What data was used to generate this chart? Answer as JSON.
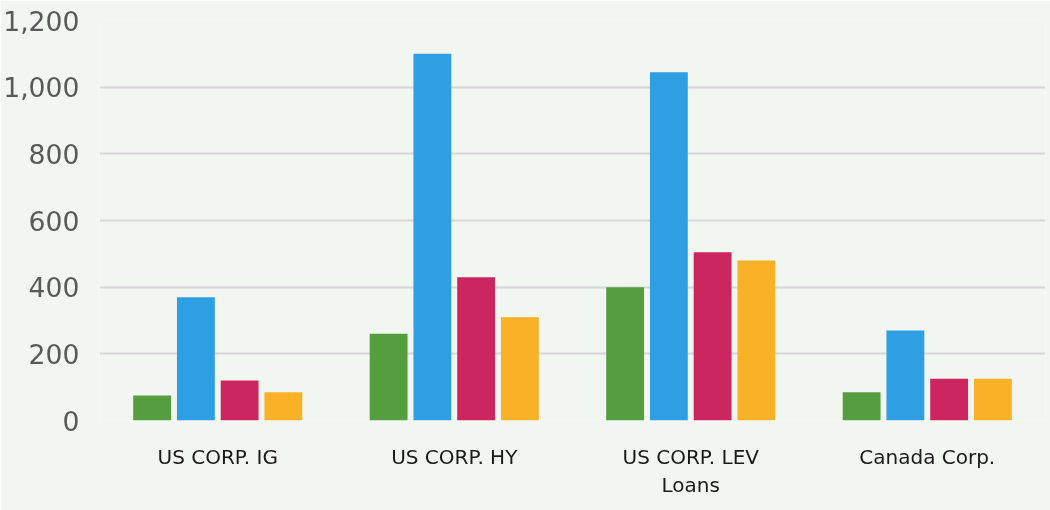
{
  "chart_data": {
    "type": "bar",
    "categories": [
      "US CORP. IG",
      "US CORP. HY",
      "US CORP. LEV Loans",
      "Canada Corp."
    ],
    "series": [
      {
        "color": "#549e3f",
        "values": [
          75,
          260,
          400,
          85
        ]
      },
      {
        "color": "#2f9fe4",
        "values": [
          370,
          1100,
          1045,
          270
        ]
      },
      {
        "color": "#cb2660",
        "values": [
          120,
          430,
          505,
          125
        ]
      },
      {
        "color": "#f9b128",
        "values": [
          85,
          310,
          480,
          125
        ]
      }
    ],
    "ylim": [
      0,
      1200
    ],
    "yticks": [
      0,
      200,
      400,
      600,
      800,
      {
        "value": 1000,
        "label": "1,000"
      },
      {
        "value": 1200,
        "label": "1,200"
      }
    ],
    "grid": "y"
  }
}
